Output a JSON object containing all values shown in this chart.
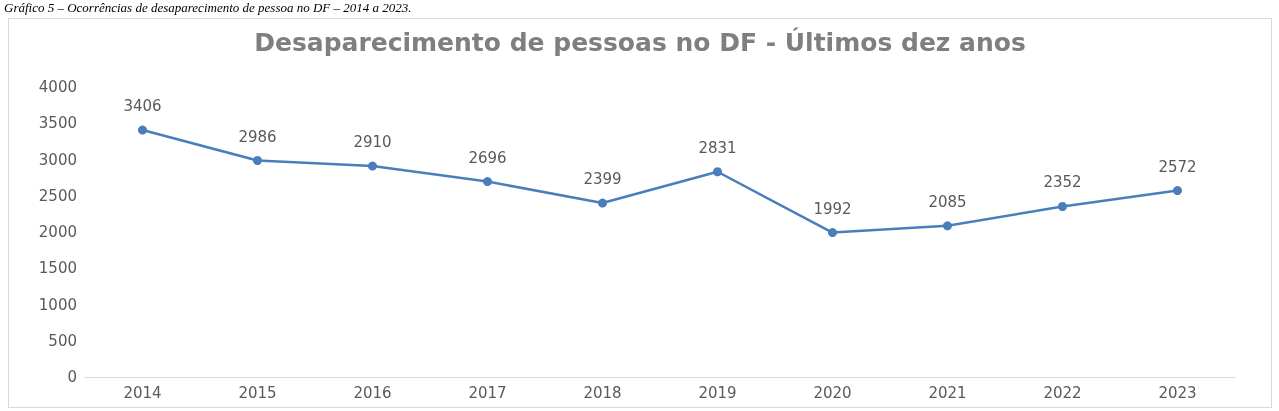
{
  "chart_data": {
    "type": "line",
    "title": "Desaparecimento de pessoas no DF - Últimos dez anos",
    "annotations": [
      "Gráfico 5 – Ocorrências de desaparecimento de pessoa no DF – 2014 a 2023."
    ],
    "categories": [
      "2014",
      "2015",
      "2016",
      "2017",
      "2018",
      "2019",
      "2020",
      "2021",
      "2022",
      "2023"
    ],
    "series": [
      {
        "color": "#4a7ebb",
        "values": [
          3406,
          2986,
          2910,
          2696,
          2399,
          2831,
          1992,
          2085,
          2352,
          2572
        ]
      }
    ],
    "ylim": [
      0,
      4000
    ],
    "yticks": [
      0,
      500,
      1000,
      1500,
      2000,
      2500,
      3000,
      3500,
      4000
    ],
    "data_labels": true,
    "marker": "circle",
    "line_style": "solid",
    "grid": false
  }
}
